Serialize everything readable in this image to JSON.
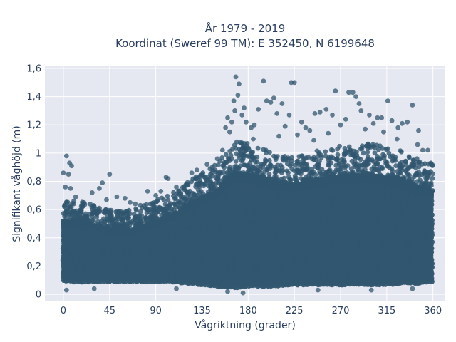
{
  "chart_data": {
    "type": "scatter",
    "title_line1": "År 1979 - 2019",
    "title_line2": "Koordinat (Sweref 99 TM): E 352450, N 6199648",
    "xlabel": "Vågriktning (grader)",
    "ylabel": "Signifikant våghöjd (m)",
    "xlim": [
      -18,
      372
    ],
    "ylim": [
      -0.05,
      1.62
    ],
    "x_ticks": [
      0,
      45,
      90,
      135,
      180,
      225,
      270,
      315,
      360
    ],
    "x_tick_labels": [
      "0",
      "45",
      "90",
      "135",
      "180",
      "225",
      "270",
      "315",
      "360"
    ],
    "y_ticks": [
      0,
      0.2,
      0.4,
      0.6,
      0.8,
      1,
      1.2,
      1.4,
      1.6
    ],
    "y_tick_labels": [
      "0",
      "0,2",
      "0,4",
      "0,6",
      "0,8",
      "1",
      "1,2",
      "1,4",
      "1,6"
    ],
    "grid": true,
    "marker_color": "#31566f",
    "plot_background": "#e5e8f0",
    "envelope": {
      "x": [
        0,
        10,
        20,
        30,
        45,
        60,
        75,
        90,
        105,
        120,
        135,
        150,
        160,
        170,
        180,
        195,
        210,
        225,
        240,
        255,
        270,
        285,
        300,
        315,
        330,
        345,
        360
      ],
      "lower": [
        0.08,
        0.07,
        0.07,
        0.07,
        0.07,
        0.07,
        0.07,
        0.07,
        0.07,
        0.06,
        0.05,
        0.04,
        0.03,
        0.03,
        0.04,
        0.04,
        0.04,
        0.05,
        0.05,
        0.05,
        0.05,
        0.05,
        0.05,
        0.05,
        0.06,
        0.06,
        0.07
      ],
      "upper": [
        0.6,
        0.6,
        0.59,
        0.57,
        0.53,
        0.52,
        0.55,
        0.6,
        0.64,
        0.72,
        0.8,
        0.86,
        0.96,
        1.02,
        1.0,
        0.96,
        0.93,
        0.92,
        0.94,
        0.96,
        0.98,
        0.99,
        1.0,
        0.97,
        0.95,
        0.9,
        0.85
      ]
    },
    "outliers": [
      {
        "x": 0,
        "y": 0.86
      },
      {
        "x": 3,
        "y": 0.98
      },
      {
        "x": 5,
        "y": 0.85
      },
      {
        "x": 6,
        "y": 0.93
      },
      {
        "x": 8,
        "y": 0.91
      },
      {
        "x": 2,
        "y": 0.76
      },
      {
        "x": 7,
        "y": 0.75
      },
      {
        "x": 28,
        "y": 0.72
      },
      {
        "x": 35,
        "y": 0.75
      },
      {
        "x": 38,
        "y": 0.79
      },
      {
        "x": 42,
        "y": 0.67
      },
      {
        "x": 45,
        "y": 0.85
      },
      {
        "x": 52,
        "y": 0.69
      },
      {
        "x": 60,
        "y": 0.68
      },
      {
        "x": 65,
        "y": 0.65
      },
      {
        "x": 75,
        "y": 0.63
      },
      {
        "x": 82,
        "y": 0.73
      },
      {
        "x": 95,
        "y": 0.73
      },
      {
        "x": 100,
        "y": 0.83
      },
      {
        "x": 102,
        "y": 0.82
      },
      {
        "x": 110,
        "y": 0.76
      },
      {
        "x": 118,
        "y": 0.74
      },
      {
        "x": 125,
        "y": 0.86
      },
      {
        "x": 130,
        "y": 0.88
      },
      {
        "x": 140,
        "y": 0.92
      },
      {
        "x": 145,
        "y": 0.9
      },
      {
        "x": 158,
        "y": 1.18
      },
      {
        "x": 160,
        "y": 1.25
      },
      {
        "x": 162,
        "y": 1.15
      },
      {
        "x": 164,
        "y": 1.22
      },
      {
        "x": 166,
        "y": 1.37
      },
      {
        "x": 167,
        "y": 1.3
      },
      {
        "x": 168,
        "y": 1.54
      },
      {
        "x": 170,
        "y": 1.41
      },
      {
        "x": 171,
        "y": 1.49
      },
      {
        "x": 174,
        "y": 1.27
      },
      {
        "x": 178,
        "y": 1.22
      },
      {
        "x": 183,
        "y": 1.18
      },
      {
        "x": 186,
        "y": 1.2
      },
      {
        "x": 190,
        "y": 1.31
      },
      {
        "x": 195,
        "y": 1.51
      },
      {
        "x": 198,
        "y": 1.37
      },
      {
        "x": 202,
        "y": 1.36
      },
      {
        "x": 205,
        "y": 1.39
      },
      {
        "x": 208,
        "y": 1.28
      },
      {
        "x": 213,
        "y": 1.35
      },
      {
        "x": 216,
        "y": 1.19
      },
      {
        "x": 220,
        "y": 1.27
      },
      {
        "x": 222,
        "y": 1.5
      },
      {
        "x": 225,
        "y": 1.5
      },
      {
        "x": 228,
        "y": 1.13
      },
      {
        "x": 232,
        "y": 1.22
      },
      {
        "x": 236,
        "y": 1.18
      },
      {
        "x": 240,
        "y": 1.16
      },
      {
        "x": 245,
        "y": 1.28
      },
      {
        "x": 250,
        "y": 1.29
      },
      {
        "x": 256,
        "y": 1.31
      },
      {
        "x": 262,
        "y": 1.27
      },
      {
        "x": 265,
        "y": 1.44
      },
      {
        "x": 270,
        "y": 1.2
      },
      {
        "x": 275,
        "y": 1.24
      },
      {
        "x": 278,
        "y": 1.43
      },
      {
        "x": 282,
        "y": 1.43
      },
      {
        "x": 285,
        "y": 1.4
      },
      {
        "x": 288,
        "y": 1.35
      },
      {
        "x": 290,
        "y": 1.3
      },
      {
        "x": 294,
        "y": 1.17
      },
      {
        "x": 298,
        "y": 1.27
      },
      {
        "x": 302,
        "y": 1.21
      },
      {
        "x": 306,
        "y": 1.25
      },
      {
        "x": 310,
        "y": 1.25
      },
      {
        "x": 316,
        "y": 1.37
      },
      {
        "x": 320,
        "y": 1.23
      },
      {
        "x": 326,
        "y": 1.18
      },
      {
        "x": 330,
        "y": 1.21
      },
      {
        "x": 335,
        "y": 1.22
      },
      {
        "x": 340,
        "y": 1.34
      },
      {
        "x": 346,
        "y": 1.16
      },
      {
        "x": 350,
        "y": 1.02
      },
      {
        "x": 355,
        "y": 1.02
      },
      {
        "x": 358,
        "y": 0.93
      },
      {
        "x": 345,
        "y": 1.06
      },
      {
        "x": 325,
        "y": 1.1
      },
      {
        "x": 312,
        "y": 1.15
      },
      {
        "x": 258,
        "y": 1.14
      },
      {
        "x": 244,
        "y": 1.09
      },
      {
        "x": 210,
        "y": 1.12
      },
      {
        "x": 176,
        "y": 1.32
      },
      {
        "x": 185,
        "y": 1.1
      },
      {
        "x": 150,
        "y": 0.96
      },
      {
        "x": 155,
        "y": 1.02
      },
      {
        "x": 90,
        "y": 0.7
      },
      {
        "x": 70,
        "y": 0.64
      },
      {
        "x": 20,
        "y": 0.65
      },
      {
        "x": 12,
        "y": 0.69
      },
      {
        "x": 355,
        "y": 0.86
      },
      {
        "x": 3,
        "y": 0.03
      },
      {
        "x": 30,
        "y": 0.04
      },
      {
        "x": 110,
        "y": 0.04
      },
      {
        "x": 248,
        "y": 0.03
      },
      {
        "x": 300,
        "y": 0.03
      },
      {
        "x": 340,
        "y": 0.04
      },
      {
        "x": 175,
        "y": 0.01
      },
      {
        "x": 160,
        "y": 0.02
      }
    ]
  }
}
